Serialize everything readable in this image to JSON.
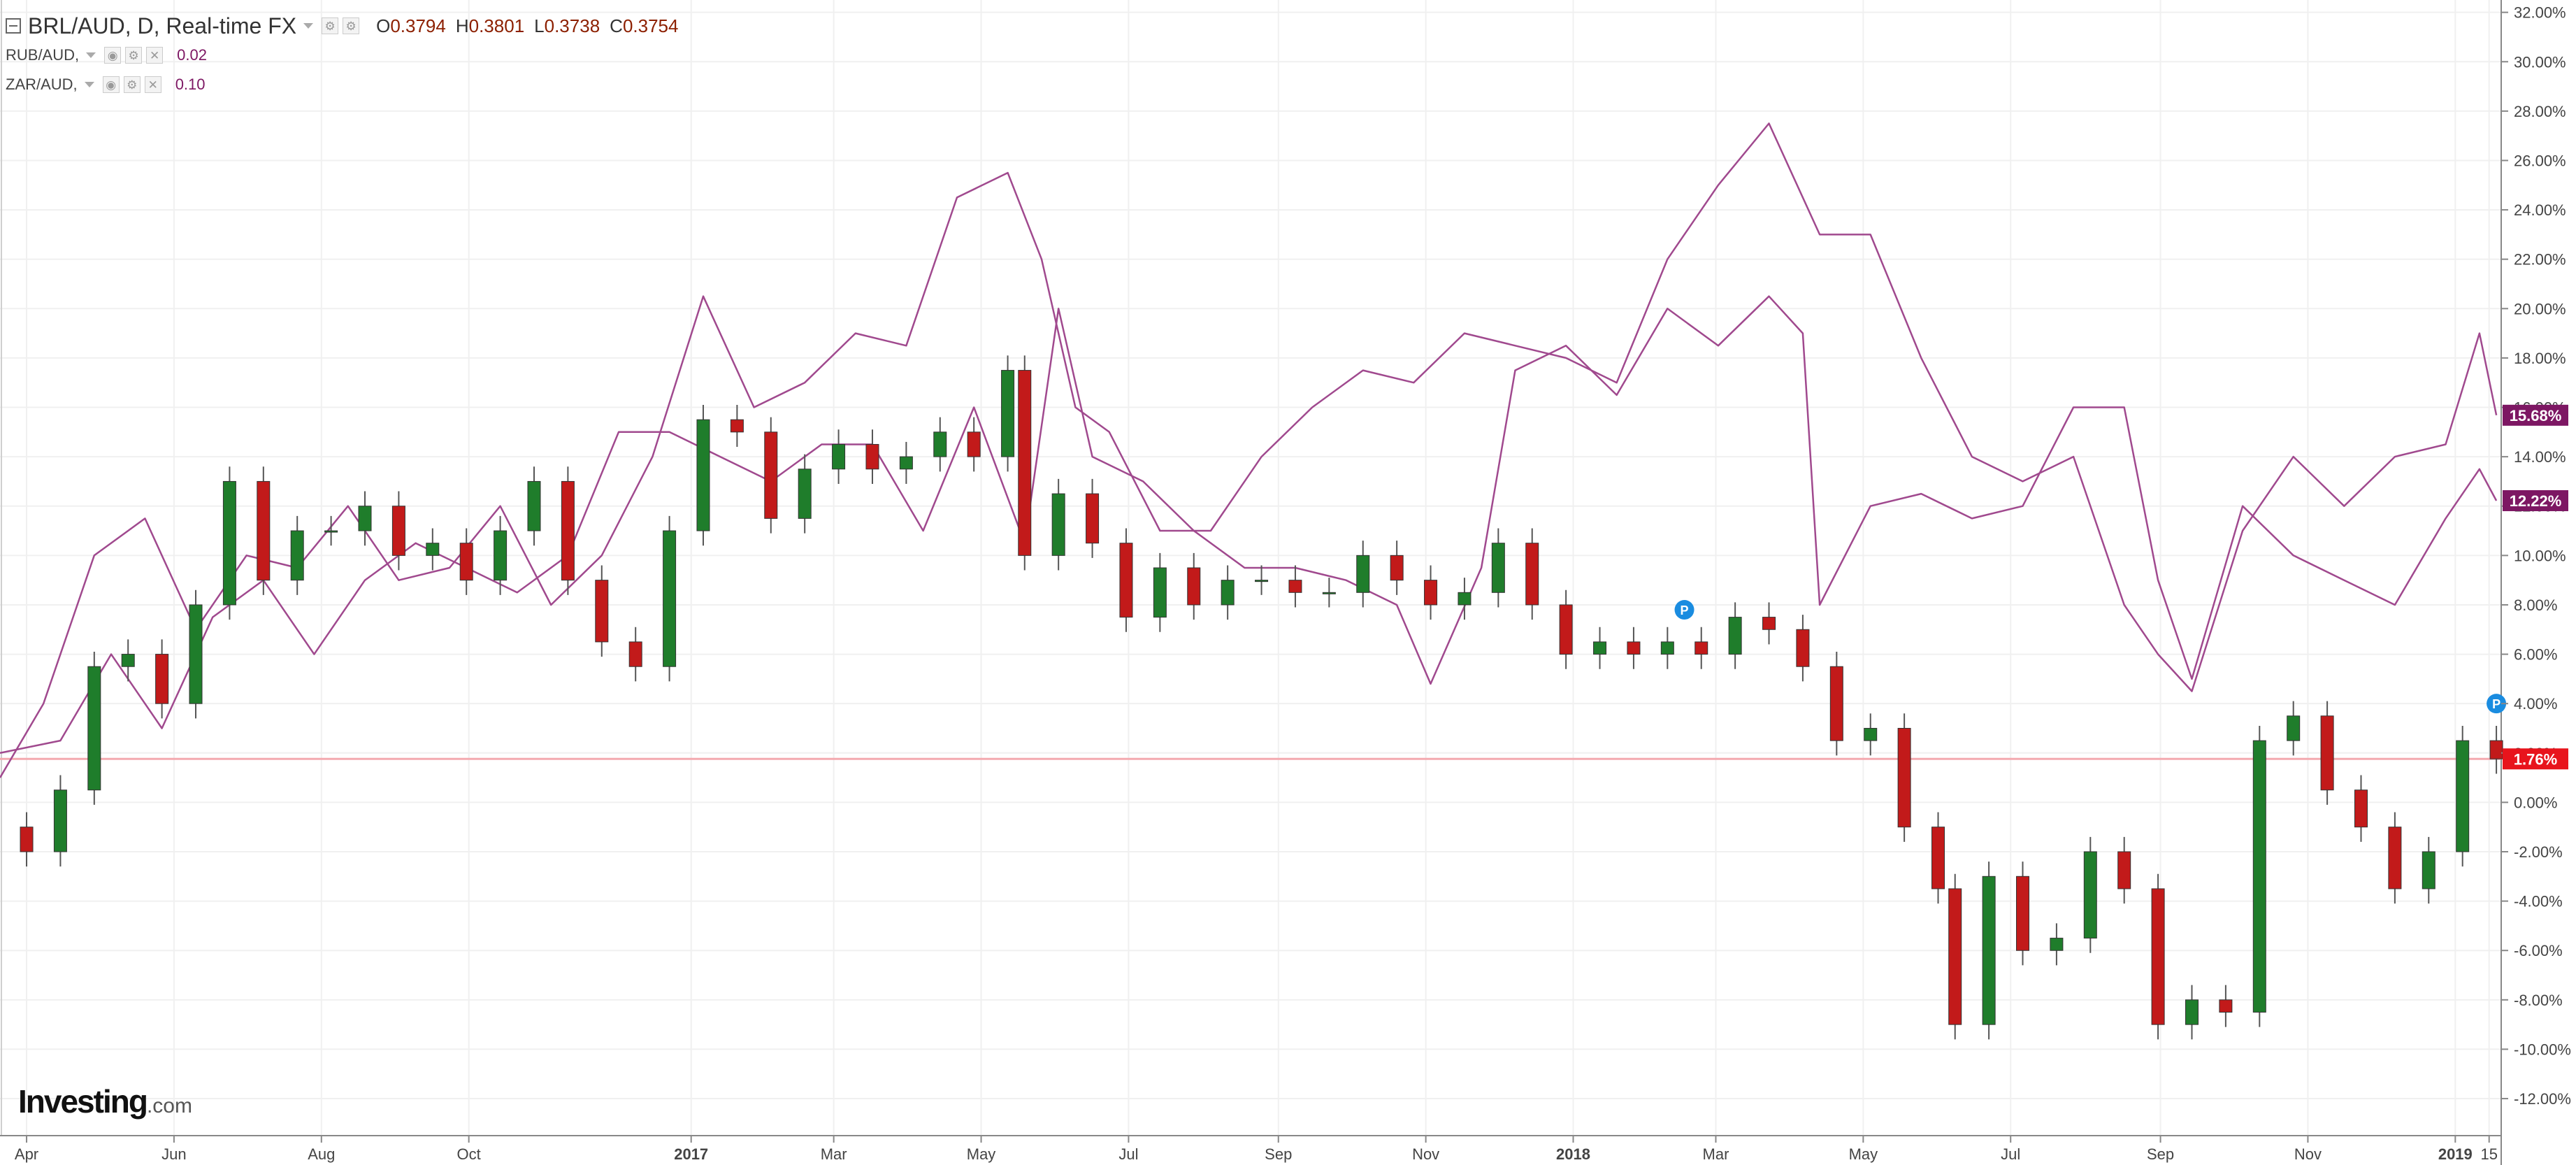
{
  "legend": {
    "main_symbol": "BRL/AUD, D, Real-time FX",
    "open_label": "O",
    "open_value": "0.3794",
    "high_label": "H",
    "high_value": "0.3801",
    "low_label": "L",
    "low_value": "0.3738",
    "close_label": "C",
    "close_value": "0.3754",
    "indicators": [
      {
        "name": "RUB/AUD,",
        "value": "0.02"
      },
      {
        "name": "ZAR/AUD,",
        "value": "0.10"
      }
    ]
  },
  "logo": {
    "brand": "Investing",
    "suffix": ".com"
  },
  "colors": {
    "up_candle": "#1f7d2b",
    "down_candle": "#c21a1a",
    "compare_line": "#a0498e",
    "compare_badge": "#7d1763",
    "last_price_line": "#f4aab0",
    "last_price_badge": "#e8141c",
    "marker": "#1a8ce0"
  },
  "chart_data": {
    "type": "line",
    "subtype": "percent-change candlestick comparison",
    "title": "",
    "xlabel": "",
    "ylabel": "",
    "ylim": [
      -13.5,
      32.5
    ],
    "yticks": [
      32,
      30,
      28,
      26,
      24,
      22,
      20,
      18,
      16,
      14,
      12,
      10,
      8,
      6,
      4,
      2,
      0,
      -2,
      -4,
      -6,
      -8,
      -10,
      -12
    ],
    "ytick_labels": [
      "32.00%",
      "30.00%",
      "28.00%",
      "26.00%",
      "24.00%",
      "22.00%",
      "20.00%",
      "18.00%",
      "16.00%",
      "14.00%",
      "12.00%",
      "10.00%",
      "8.00%",
      "6.00%",
      "4.00%",
      "2.00%",
      "0.00%",
      "-2.00%",
      "-4.00%",
      "-6.00%",
      "-8.00%",
      "-10.00%",
      "-12.00%"
    ],
    "xlim": [
      "2016-03-21",
      "2019-01-20"
    ],
    "x_ticks": [
      {
        "date": "2016-04-01",
        "label": "Apr",
        "bold": false
      },
      {
        "date": "2016-06-01",
        "label": "Jun",
        "bold": false
      },
      {
        "date": "2016-08-01",
        "label": "Aug",
        "bold": false
      },
      {
        "date": "2016-10-01",
        "label": "Oct",
        "bold": false
      },
      {
        "date": "2017-01-01",
        "label": "2017",
        "bold": true
      },
      {
        "date": "2017-03-01",
        "label": "Mar",
        "bold": false
      },
      {
        "date": "2017-05-01",
        "label": "May",
        "bold": false
      },
      {
        "date": "2017-07-01",
        "label": "Jul",
        "bold": false
      },
      {
        "date": "2017-09-01",
        "label": "Sep",
        "bold": false
      },
      {
        "date": "2017-11-01",
        "label": "Nov",
        "bold": false
      },
      {
        "date": "2018-01-01",
        "label": "2018",
        "bold": true
      },
      {
        "date": "2018-03-01",
        "label": "Mar",
        "bold": false
      },
      {
        "date": "2018-05-01",
        "label": "May",
        "bold": false
      },
      {
        "date": "2018-07-01",
        "label": "Jul",
        "bold": false
      },
      {
        "date": "2018-09-01",
        "label": "Sep",
        "bold": false
      },
      {
        "date": "2018-11-01",
        "label": "Nov",
        "bold": false
      },
      {
        "date": "2019-01-01",
        "label": "2019",
        "bold": true
      },
      {
        "date": "2019-01-15",
        "label": "15",
        "bold": false
      }
    ],
    "grid": true,
    "last_price_line": 1.76,
    "series": [
      {
        "name": "BRL/AUD",
        "style": "candles",
        "points": [
          [
            "2016-03-21",
            -1.0
          ],
          [
            "2016-04-01",
            -2.0
          ],
          [
            "2016-04-15",
            0.5
          ],
          [
            "2016-04-29",
            5.5
          ],
          [
            "2016-05-13",
            6.0
          ],
          [
            "2016-05-27",
            4.0
          ],
          [
            "2016-06-10",
            8.0
          ],
          [
            "2016-06-24",
            13.0
          ],
          [
            "2016-07-08",
            9.0
          ],
          [
            "2016-07-22",
            11.0
          ],
          [
            "2016-08-05",
            11.0
          ],
          [
            "2016-08-19",
            12.0
          ],
          [
            "2016-09-02",
            10.0
          ],
          [
            "2016-09-16",
            10.5
          ],
          [
            "2016-09-30",
            9.0
          ],
          [
            "2016-10-14",
            11.0
          ],
          [
            "2016-10-28",
            13.0
          ],
          [
            "2016-11-11",
            9.0
          ],
          [
            "2016-11-25",
            6.5
          ],
          [
            "2016-12-09",
            5.5
          ],
          [
            "2016-12-23",
            11.0
          ],
          [
            "2017-01-06",
            15.5
          ],
          [
            "2017-01-20",
            15.0
          ],
          [
            "2017-02-03",
            11.5
          ],
          [
            "2017-02-17",
            13.5
          ],
          [
            "2017-03-03",
            14.5
          ],
          [
            "2017-03-17",
            13.5
          ],
          [
            "2017-03-31",
            14.0
          ],
          [
            "2017-04-14",
            15.0
          ],
          [
            "2017-04-28",
            14.0
          ],
          [
            "2017-05-12",
            17.5
          ],
          [
            "2017-05-19",
            10.0
          ],
          [
            "2017-06-02",
            12.5
          ],
          [
            "2017-06-16",
            10.5
          ],
          [
            "2017-06-30",
            7.5
          ],
          [
            "2017-07-14",
            9.5
          ],
          [
            "2017-07-28",
            8.0
          ],
          [
            "2017-08-11",
            9.0
          ],
          [
            "2017-08-25",
            9.0
          ],
          [
            "2017-09-08",
            8.5
          ],
          [
            "2017-09-22",
            8.5
          ],
          [
            "2017-10-06",
            10.0
          ],
          [
            "2017-10-20",
            9.0
          ],
          [
            "2017-11-03",
            8.0
          ],
          [
            "2017-11-17",
            8.5
          ],
          [
            "2017-12-01",
            10.5
          ],
          [
            "2017-12-15",
            8.0
          ],
          [
            "2017-12-29",
            6.0
          ],
          [
            "2018-01-12",
            6.5
          ],
          [
            "2018-01-26",
            6.0
          ],
          [
            "2018-02-09",
            6.5
          ],
          [
            "2018-02-23",
            6.0
          ],
          [
            "2018-03-09",
            7.5
          ],
          [
            "2018-03-23",
            7.0
          ],
          [
            "2018-04-06",
            5.5
          ],
          [
            "2018-04-20",
            2.5
          ],
          [
            "2018-05-04",
            3.0
          ],
          [
            "2018-05-18",
            -1.0
          ],
          [
            "2018-06-01",
            -3.5
          ],
          [
            "2018-06-08",
            -9.0
          ],
          [
            "2018-06-22",
            -3.0
          ],
          [
            "2018-07-06",
            -6.0
          ],
          [
            "2018-07-20",
            -5.5
          ],
          [
            "2018-08-03",
            -2.0
          ],
          [
            "2018-08-17",
            -3.5
          ],
          [
            "2018-08-31",
            -9.0
          ],
          [
            "2018-09-14",
            -8.0
          ],
          [
            "2018-09-28",
            -8.5
          ],
          [
            "2018-10-12",
            2.5
          ],
          [
            "2018-10-26",
            3.5
          ],
          [
            "2018-11-09",
            0.5
          ],
          [
            "2018-11-23",
            -1.0
          ],
          [
            "2018-12-07",
            -3.5
          ],
          [
            "2018-12-21",
            -2.0
          ],
          [
            "2019-01-04",
            2.5
          ],
          [
            "2019-01-18",
            1.76
          ]
        ]
      },
      {
        "name": "RUB/AUD",
        "style": "line",
        "last_label": "15.68%",
        "points": [
          [
            "2016-03-21",
            1.0
          ],
          [
            "2016-04-08",
            4.0
          ],
          [
            "2016-04-29",
            10.0
          ],
          [
            "2016-05-20",
            11.5
          ],
          [
            "2016-06-10",
            7.0
          ],
          [
            "2016-07-01",
            10.0
          ],
          [
            "2016-07-22",
            9.5
          ],
          [
            "2016-08-12",
            12.0
          ],
          [
            "2016-09-02",
            9.0
          ],
          [
            "2016-09-23",
            9.5
          ],
          [
            "2016-10-14",
            12.0
          ],
          [
            "2016-11-04",
            8.0
          ],
          [
            "2016-11-25",
            10.0
          ],
          [
            "2016-12-16",
            14.0
          ],
          [
            "2017-01-06",
            20.5
          ],
          [
            "2017-01-27",
            16.0
          ],
          [
            "2017-02-17",
            17.0
          ],
          [
            "2017-03-10",
            19.0
          ],
          [
            "2017-03-31",
            18.5
          ],
          [
            "2017-04-21",
            24.5
          ],
          [
            "2017-05-12",
            25.5
          ],
          [
            "2017-05-26",
            22.0
          ],
          [
            "2017-06-09",
            16.0
          ],
          [
            "2017-06-23",
            15.0
          ],
          [
            "2017-07-14",
            11.0
          ],
          [
            "2017-08-04",
            11.0
          ],
          [
            "2017-08-25",
            14.0
          ],
          [
            "2017-09-15",
            16.0
          ],
          [
            "2017-10-06",
            17.5
          ],
          [
            "2017-10-27",
            17.0
          ],
          [
            "2017-11-17",
            19.0
          ],
          [
            "2017-12-08",
            18.5
          ],
          [
            "2017-12-29",
            18.0
          ],
          [
            "2018-01-19",
            17.0
          ],
          [
            "2018-02-09",
            22.0
          ],
          [
            "2018-03-02",
            25.0
          ],
          [
            "2018-03-23",
            27.5
          ],
          [
            "2018-04-13",
            23.0
          ],
          [
            "2018-05-04",
            23.0
          ],
          [
            "2018-05-25",
            18.0
          ],
          [
            "2018-06-15",
            14.0
          ],
          [
            "2018-07-06",
            13.0
          ],
          [
            "2018-07-27",
            14.0
          ],
          [
            "2018-08-17",
            8.0
          ],
          [
            "2018-08-31",
            6.0
          ],
          [
            "2018-09-14",
            4.5
          ],
          [
            "2018-10-05",
            11.0
          ],
          [
            "2018-10-26",
            14.0
          ],
          [
            "2018-11-16",
            12.0
          ],
          [
            "2018-12-07",
            14.0
          ],
          [
            "2018-12-28",
            14.5
          ],
          [
            "2019-01-11",
            19.0
          ],
          [
            "2019-01-18",
            15.68
          ]
        ]
      },
      {
        "name": "ZAR/AUD",
        "style": "line",
        "last_label": "12.22%",
        "points": [
          [
            "2016-03-21",
            2.0
          ],
          [
            "2016-04-15",
            2.5
          ],
          [
            "2016-05-06",
            6.0
          ],
          [
            "2016-05-27",
            3.0
          ],
          [
            "2016-06-17",
            7.5
          ],
          [
            "2016-07-08",
            9.0
          ],
          [
            "2016-07-29",
            6.0
          ],
          [
            "2016-08-19",
            9.0
          ],
          [
            "2016-09-09",
            10.5
          ],
          [
            "2016-09-30",
            9.5
          ],
          [
            "2016-10-21",
            8.5
          ],
          [
            "2016-11-11",
            10.0
          ],
          [
            "2016-12-02",
            15.0
          ],
          [
            "2016-12-23",
            15.0
          ],
          [
            "2017-01-13",
            14.0
          ],
          [
            "2017-02-03",
            13.0
          ],
          [
            "2017-02-24",
            14.5
          ],
          [
            "2017-03-17",
            14.5
          ],
          [
            "2017-04-07",
            11.0
          ],
          [
            "2017-04-28",
            16.0
          ],
          [
            "2017-05-19",
            10.5
          ],
          [
            "2017-06-02",
            20.0
          ],
          [
            "2017-06-16",
            14.0
          ],
          [
            "2017-07-07",
            13.0
          ],
          [
            "2017-07-28",
            11.0
          ],
          [
            "2017-08-18",
            9.5
          ],
          [
            "2017-09-08",
            9.5
          ],
          [
            "2017-09-29",
            9.0
          ],
          [
            "2017-10-20",
            8.0
          ],
          [
            "2017-11-03",
            4.8
          ],
          [
            "2017-11-24",
            9.5
          ],
          [
            "2017-12-08",
            17.5
          ],
          [
            "2017-12-29",
            18.5
          ],
          [
            "2018-01-19",
            16.5
          ],
          [
            "2018-02-09",
            20.0
          ],
          [
            "2018-03-02",
            18.5
          ],
          [
            "2018-03-23",
            20.5
          ],
          [
            "2018-04-06",
            19.0
          ],
          [
            "2018-04-13",
            8.0
          ],
          [
            "2018-05-04",
            12.0
          ],
          [
            "2018-05-25",
            12.5
          ],
          [
            "2018-06-15",
            11.5
          ],
          [
            "2018-07-06",
            12.0
          ],
          [
            "2018-07-27",
            16.0
          ],
          [
            "2018-08-17",
            16.0
          ],
          [
            "2018-08-31",
            9.0
          ],
          [
            "2018-09-14",
            5.0
          ],
          [
            "2018-10-05",
            12.0
          ],
          [
            "2018-10-26",
            10.0
          ],
          [
            "2018-11-16",
            9.0
          ],
          [
            "2018-12-07",
            8.0
          ],
          [
            "2018-12-28",
            11.5
          ],
          [
            "2019-01-11",
            13.5
          ],
          [
            "2019-01-18",
            12.22
          ]
        ]
      }
    ],
    "badges": [
      {
        "label": "15.68%",
        "value": 15.68,
        "kind": "compare"
      },
      {
        "label": "12.22%",
        "value": 12.22,
        "kind": "compare"
      },
      {
        "label": "1.76%",
        "value": 1.76,
        "kind": "price"
      }
    ],
    "markers": [
      {
        "date": "2018-02-16",
        "value": 7.8,
        "label": "P"
      },
      {
        "date": "2019-01-18",
        "value": 4.0,
        "label": "P"
      }
    ]
  }
}
